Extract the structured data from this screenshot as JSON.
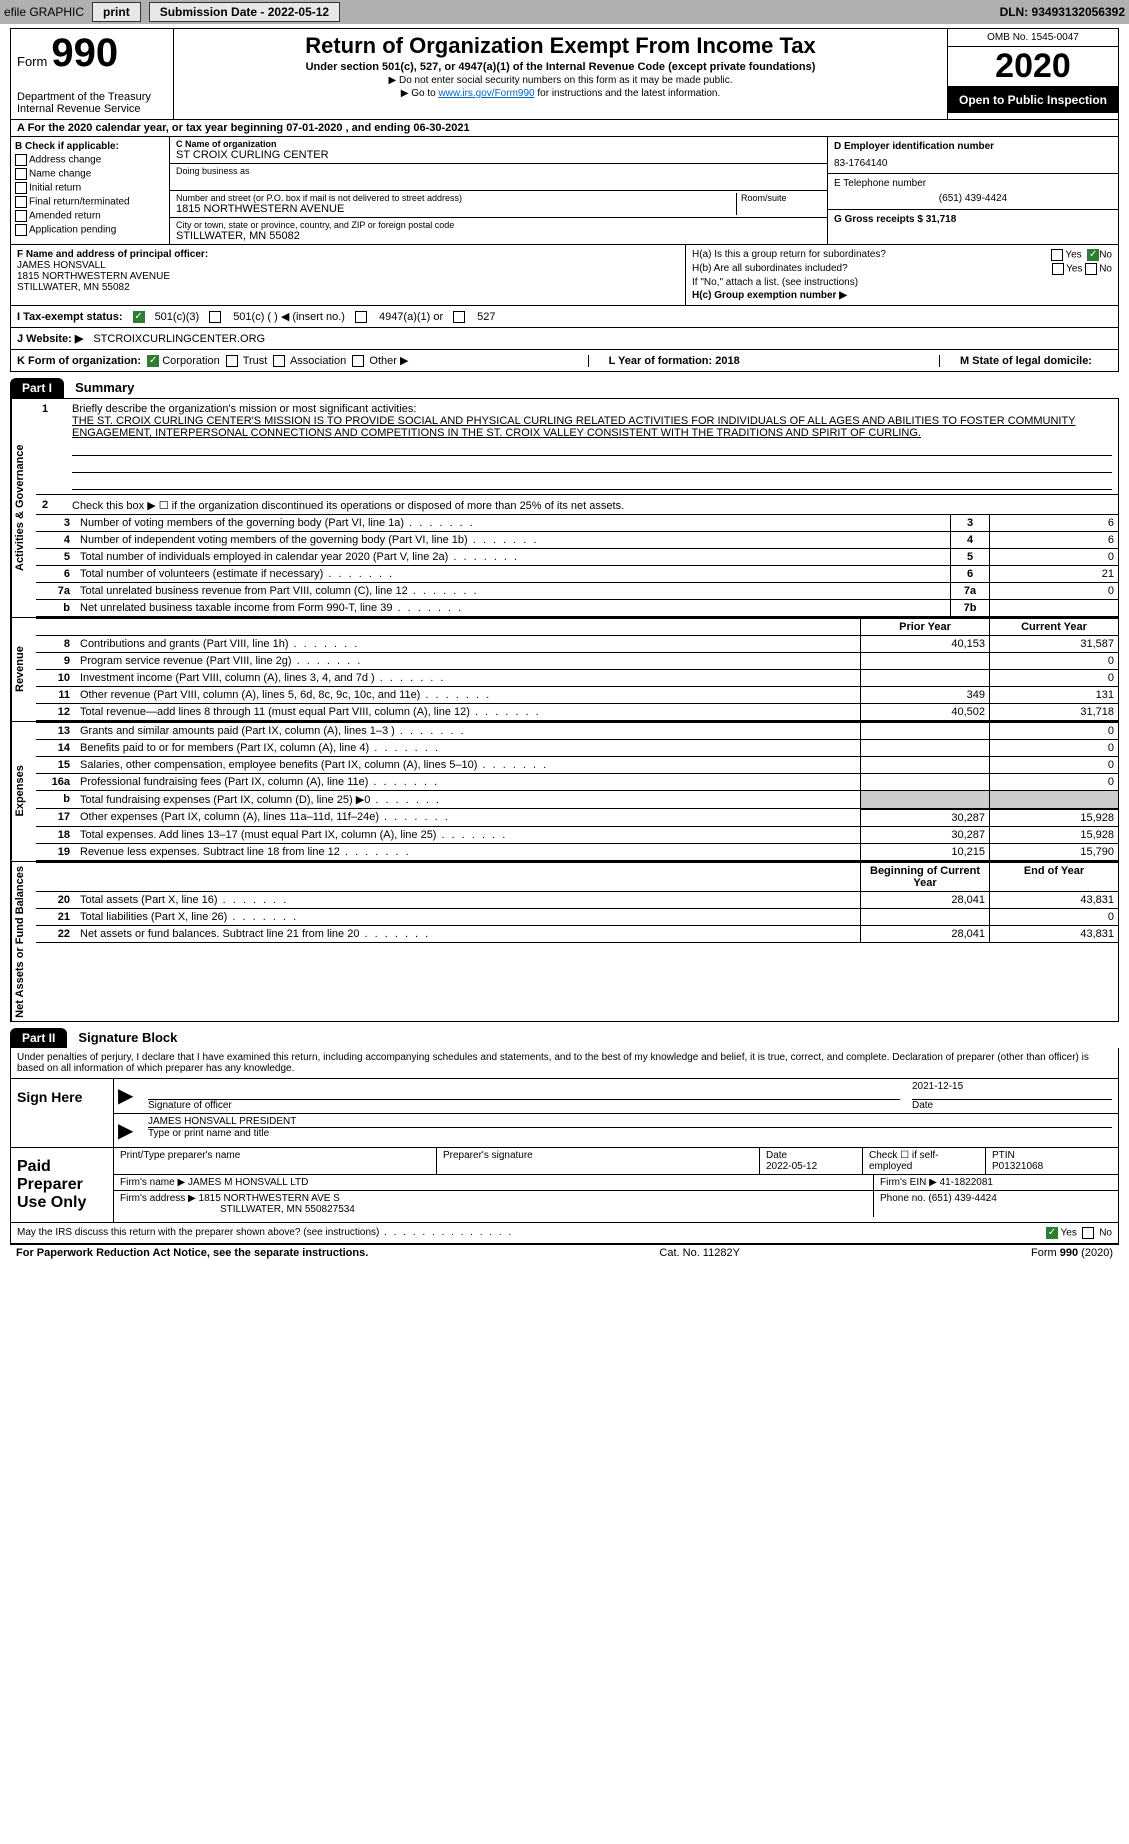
{
  "top_bar": {
    "efile": "efile GRAPHIC",
    "print": "print",
    "sub_date_label": "Submission Date - 2022-05-12",
    "dln": "DLN: 93493132056392"
  },
  "header": {
    "form_word": "Form",
    "form_num": "990",
    "dept": "Department of the Treasury",
    "irs": "Internal Revenue Service",
    "title": "Return of Organization Exempt From Income Tax",
    "subtitle": "Under section 501(c), 527, or 4947(a)(1) of the Internal Revenue Code (except private foundations)",
    "note1": "▶ Do not enter social security numbers on this form as it may be made public.",
    "note2_pre": "▶ Go to ",
    "note2_link": "www.irs.gov/Form990",
    "note2_post": " for instructions and the latest information.",
    "omb": "OMB No. 1545-0047",
    "year": "2020",
    "open": "Open to Public Inspection"
  },
  "section_a": "A For the 2020 calendar year, or tax year beginning 07-01-2020   , and ending 06-30-2021",
  "col_b": {
    "label": "B Check if applicable:",
    "addr_change": "Address change",
    "name_change": "Name change",
    "initial": "Initial return",
    "final": "Final return/terminated",
    "amended": "Amended return",
    "app_pending": "Application pending"
  },
  "col_c": {
    "name_label": "C Name of organization",
    "name": "ST CROIX CURLING CENTER",
    "dba_label": "Doing business as",
    "addr_label": "Number and street (or P.O. box if mail is not delivered to street address)",
    "room_label": "Room/suite",
    "addr": "1815 NORTHWESTERN AVENUE",
    "city_label": "City or town, state or province, country, and ZIP or foreign postal code",
    "city": "STILLWATER, MN  55082"
  },
  "col_d": {
    "label": "D Employer identification number",
    "ein": "83-1764140"
  },
  "col_e": {
    "label": "E Telephone number",
    "phone": "(651) 439-4424"
  },
  "col_g": {
    "label": "G Gross receipts $ 31,718"
  },
  "col_f": {
    "label": "F Name and address of principal officer:",
    "name": "JAMES HONSVALL",
    "addr": "1815 NORTHWESTERN AVENUE",
    "city": "STILLWATER, MN  55082"
  },
  "col_h": {
    "ha": "H(a)  Is this a group return for subordinates?",
    "hb": "H(b)  Are all subordinates included?",
    "hb_note": "If \"No,\" attach a list. (see instructions)",
    "hc": "H(c)  Group exemption number ▶",
    "yes": "Yes",
    "no": "No"
  },
  "status": {
    "i_label": "I    Tax-exempt status:",
    "c3": "501(c)(3)",
    "c": "501(c) (   ) ◀ (insert no.)",
    "a1": "4947(a)(1) or",
    "s527": "527"
  },
  "website": {
    "label": "J   Website: ▶",
    "url": "STCROIXCURLINGCENTER.ORG"
  },
  "kform": {
    "label": "K Form of organization:",
    "corp": "Corporation",
    "trust": "Trust",
    "assoc": "Association",
    "other": "Other ▶",
    "l": "L Year of formation: 2018",
    "m": "M State of legal domicile:"
  },
  "part1": {
    "header": "Part I",
    "title": "Summary",
    "line1_label": "Briefly describe the organization's mission or most significant activities:",
    "mission": "THE ST. CROIX CURLING CENTER'S MISSION IS TO PROVIDE SOCIAL AND PHYSICAL CURLING RELATED ACTIVITIES FOR INDIVIDUALS OF ALL AGES AND ABILITIES TO FOSTER COMMUNITY ENGAGEMENT, INTERPERSONAL CONNECTIONS AND COMPETITIONS IN THE ST. CROIX VALLEY CONSISTENT WITH THE TRADITIONS AND SPIRIT OF CURLING.",
    "line2": "Check this box ▶ ☐ if the organization discontinued its operations or disposed of more than 25% of its net assets.",
    "side_gov": "Activities & Governance",
    "side_rev": "Revenue",
    "side_exp": "Expenses",
    "side_net": "Net Assets or Fund Balances",
    "prior_year": "Prior Year",
    "current_year": "Current Year",
    "begin_year": "Beginning of Current Year",
    "end_year": "End of Year"
  },
  "gov_rows": [
    {
      "n": "3",
      "d": "Number of voting members of the governing body (Part VI, line 1a)",
      "k": "3",
      "v": "6"
    },
    {
      "n": "4",
      "d": "Number of independent voting members of the governing body (Part VI, line 1b)",
      "k": "4",
      "v": "6"
    },
    {
      "n": "5",
      "d": "Total number of individuals employed in calendar year 2020 (Part V, line 2a)",
      "k": "5",
      "v": "0"
    },
    {
      "n": "6",
      "d": "Total number of volunteers (estimate if necessary)",
      "k": "6",
      "v": "21"
    },
    {
      "n": "7a",
      "d": "Total unrelated business revenue from Part VIII, column (C), line 12",
      "k": "7a",
      "v": "0"
    },
    {
      "n": "b",
      "d": "Net unrelated business taxable income from Form 990-T, line 39",
      "k": "7b",
      "v": ""
    }
  ],
  "rev_rows": [
    {
      "n": "8",
      "d": "Contributions and grants (Part VIII, line 1h)",
      "p": "40,153",
      "c": "31,587"
    },
    {
      "n": "9",
      "d": "Program service revenue (Part VIII, line 2g)",
      "p": "",
      "c": "0"
    },
    {
      "n": "10",
      "d": "Investment income (Part VIII, column (A), lines 3, 4, and 7d )",
      "p": "",
      "c": "0"
    },
    {
      "n": "11",
      "d": "Other revenue (Part VIII, column (A), lines 5, 6d, 8c, 9c, 10c, and 11e)",
      "p": "349",
      "c": "131"
    },
    {
      "n": "12",
      "d": "Total revenue—add lines 8 through 11 (must equal Part VIII, column (A), line 12)",
      "p": "40,502",
      "c": "31,718"
    }
  ],
  "exp_rows": [
    {
      "n": "13",
      "d": "Grants and similar amounts paid (Part IX, column (A), lines 1–3 )",
      "p": "",
      "c": "0"
    },
    {
      "n": "14",
      "d": "Benefits paid to or for members (Part IX, column (A), line 4)",
      "p": "",
      "c": "0"
    },
    {
      "n": "15",
      "d": "Salaries, other compensation, employee benefits (Part IX, column (A), lines 5–10)",
      "p": "",
      "c": "0"
    },
    {
      "n": "16a",
      "d": "Professional fundraising fees (Part IX, column (A), line 11e)",
      "p": "",
      "c": "0"
    },
    {
      "n": "b",
      "d": "Total fundraising expenses (Part IX, column (D), line 25) ▶0",
      "p": "—",
      "c": "—"
    },
    {
      "n": "17",
      "d": "Other expenses (Part IX, column (A), lines 11a–11d, 11f–24e)",
      "p": "30,287",
      "c": "15,928"
    },
    {
      "n": "18",
      "d": "Total expenses. Add lines 13–17 (must equal Part IX, column (A), line 25)",
      "p": "30,287",
      "c": "15,928"
    },
    {
      "n": "19",
      "d": "Revenue less expenses. Subtract line 18 from line 12",
      "p": "10,215",
      "c": "15,790"
    }
  ],
  "net_rows": [
    {
      "n": "20",
      "d": "Total assets (Part X, line 16)",
      "p": "28,041",
      "c": "43,831"
    },
    {
      "n": "21",
      "d": "Total liabilities (Part X, line 26)",
      "p": "",
      "c": "0"
    },
    {
      "n": "22",
      "d": "Net assets or fund balances. Subtract line 21 from line 20",
      "p": "28,041",
      "c": "43,831"
    }
  ],
  "part2": {
    "header": "Part II",
    "title": "Signature Block",
    "decl": "Under penalties of perjury, I declare that I have examined this return, including accompanying schedules and statements, and to the best of my knowledge and belief, it is true, correct, and complete. Declaration of preparer (other than officer) is based on all information of which preparer has any knowledge.",
    "sign_here": "Sign Here",
    "sig_officer": "Signature of officer",
    "date": "Date",
    "sig_date": "2021-12-15",
    "officer_name": "JAMES HONSVALL  PRESIDENT",
    "type_name": "Type or print name and title",
    "paid": "Paid Preparer Use Only",
    "prep_name_label": "Print/Type preparer's name",
    "prep_sig_label": "Preparer's signature",
    "prep_date": "Date\n2022-05-12",
    "self_emp": "Check ☐ if self-employed",
    "ptin_label": "PTIN",
    "ptin": "P01321068",
    "firm_name_label": "Firm's name    ▶",
    "firm_name": "JAMES M HONSVALL LTD",
    "firm_ein_label": "Firm's EIN ▶",
    "firm_ein": "41-1822081",
    "firm_addr_label": "Firm's address ▶",
    "firm_addr": "1815 NORTHWESTERN AVE S",
    "firm_city": "STILLWATER, MN  550827534",
    "firm_phone_label": "Phone no.",
    "firm_phone": "(651) 439-4424",
    "discuss": "May the IRS discuss this return with the preparer shown above? (see instructions)",
    "yes": "Yes",
    "no": "No"
  },
  "footer": {
    "left": "For Paperwork Reduction Act Notice, see the separate instructions.",
    "mid": "Cat. No. 11282Y",
    "right": "Form 990 (2020)"
  }
}
